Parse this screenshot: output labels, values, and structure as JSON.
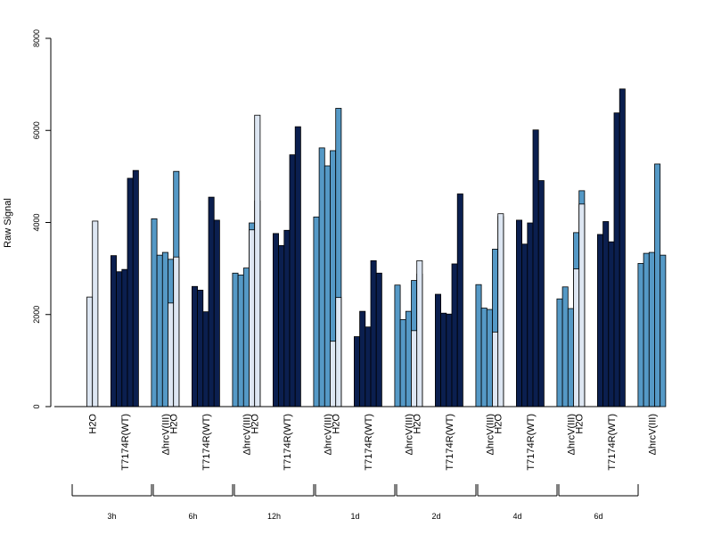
{
  "chart_data": {
    "type": "bar",
    "ylabel": "Raw Signal",
    "ylim": [
      0,
      8000
    ],
    "yticks": [
      0,
      2000,
      4000,
      6000,
      8000
    ],
    "groups": [
      "H2O",
      "T7174R(WT)",
      "ΔhrcV(III)"
    ],
    "group_colors": [
      "#dde6f2",
      "#0b1f4f",
      "#5599c6"
    ],
    "time_points": [
      {
        "label": "3h",
        "values": [
          [
            2380,
            4030
          ],
          [
            3280,
            2930,
            2980,
            4960,
            5130
          ],
          [
            4080,
            3290,
            3350,
            3200,
            5110
          ]
        ]
      },
      {
        "label": "6h",
        "values": [
          [
            2250,
            3250
          ],
          [
            2610,
            2530,
            2060,
            4550,
            4050
          ],
          [
            2900,
            2860,
            3010,
            3990,
            4470
          ]
        ]
      },
      {
        "label": "12h",
        "values": [
          [
            3840,
            6330
          ],
          [
            3760,
            3500,
            3830,
            5470,
            6080
          ],
          [
            4120,
            5620,
            5230,
            5560,
            6480
          ]
        ]
      },
      {
        "label": "1d",
        "values": [
          [
            1420,
            2370
          ],
          [
            1520,
            2070,
            1730,
            3170,
            2900
          ],
          [
            2640,
            1890,
            2070,
            2740,
            2880
          ]
        ]
      },
      {
        "label": "2d",
        "values": [
          [
            1650,
            3170
          ],
          [
            2440,
            2030,
            2010,
            3100,
            4620
          ],
          [
            2650,
            2140,
            2110,
            3420,
            4130
          ]
        ]
      },
      {
        "label": "4d",
        "values": [
          [
            1620,
            4190
          ],
          [
            4050,
            3530,
            3990,
            6010,
            4910
          ],
          [
            2340,
            2600,
            2130,
            3780,
            4690
          ]
        ]
      },
      {
        "label": "6d",
        "values": [
          [
            2990,
            4400
          ],
          [
            3740,
            4020,
            3580,
            6380,
            6900
          ],
          [
            3110,
            3330,
            3350,
            5270,
            3290
          ]
        ]
      }
    ]
  }
}
